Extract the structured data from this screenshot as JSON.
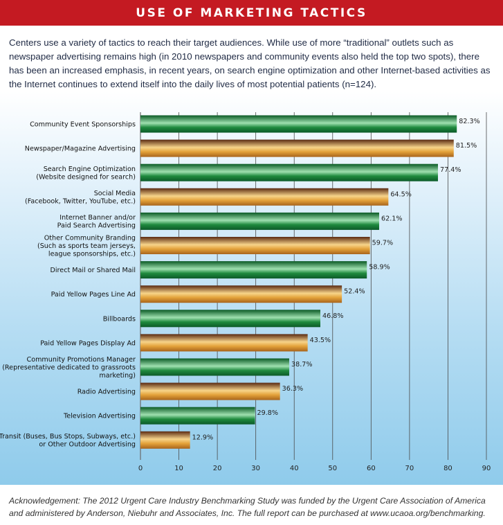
{
  "header": {
    "title": "USE OF MARKETING TACTICS"
  },
  "intro": {
    "text": "Centers use a variety of tactics to reach their target audiences. While use of more “traditional” outlets such as newspaper advertising remains high (in 2010 newspapers and community events also held the top two spots), there has been an increased emphasis, in recent years, on search engine optimization and other Internet-based activities as the Internet continues to extend itself into the daily lives of most potential patients (n=124)."
  },
  "colors": {
    "banner": "#c41a22",
    "green_bar": "#1f8a3e",
    "orange_bar": "#e3a23a",
    "panel_bottom": "#8fcbeb"
  },
  "chart_data": {
    "type": "bar",
    "orientation": "horizontal",
    "categories": [
      [
        "Community Event Sponsorships"
      ],
      [
        "Newspaper/Magazine Advertising"
      ],
      [
        "Search Engine Optimization",
        "(Website designed for search)"
      ],
      [
        "Social Media",
        "(Facebook, Twitter, YouTube, etc.)"
      ],
      [
        "Internet Banner and/or",
        "Paid Search Advertising"
      ],
      [
        "Other Community Branding",
        "(Such as sports team jerseys,",
        "league sponsorships, etc.)"
      ],
      [
        "Direct Mail or Shared Mail"
      ],
      [
        "Paid Yellow Pages Line Ad"
      ],
      [
        "Billboards"
      ],
      [
        "Paid Yellow Pages Display Ad"
      ],
      [
        "Community Promotions Manager",
        "(Representative dedicated to grassroots",
        "marketing)"
      ],
      [
        "Radio Advertising"
      ],
      [
        "Television Advertising"
      ],
      [
        "Transit (Buses, Bus Stops, Subways, etc.)",
        "or Other Outdoor Advertising"
      ]
    ],
    "values": [
      82.3,
      81.5,
      77.4,
      64.5,
      62.1,
      59.7,
      58.9,
      52.4,
      46.8,
      43.5,
      38.7,
      36.3,
      29.8,
      12.9
    ],
    "value_labels": [
      "82.3%",
      "81.5%",
      "77.4%",
      "64.5%",
      "62.1%",
      "59.7%",
      "58.9%",
      "52.4%",
      "46.8%",
      "43.5%",
      "38.7%",
      "36.3%",
      "29.8%",
      "12.9%"
    ],
    "bar_styles": [
      "green",
      "orange",
      "green",
      "orange",
      "green",
      "orange",
      "green",
      "orange",
      "green",
      "orange",
      "green",
      "orange",
      "green",
      "orange"
    ],
    "xticks": [
      "0",
      "10",
      "20",
      "30",
      "40",
      "50",
      "60",
      "70",
      "80",
      "90"
    ],
    "xlim": [
      0,
      90
    ],
    "grid": "vertical",
    "title": "",
    "xlabel": "",
    "ylabel": ""
  },
  "acknowledgement": {
    "text": "Acknowledgement: The 2012 Urgent Care Industry Benchmarking Study was funded by the Urgent Care Association of America and administered by Anderson, Niebuhr and Associates, Inc. The full report can be purchased at www.ucaoa.org/benchmarking."
  }
}
